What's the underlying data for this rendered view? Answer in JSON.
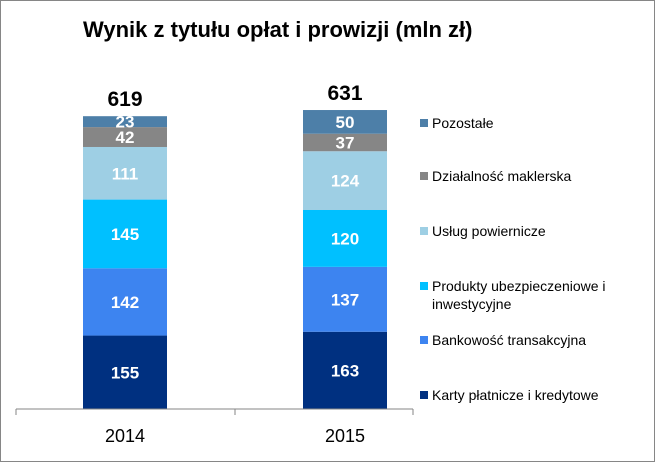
{
  "chart_data": {
    "type": "bar",
    "stacked": true,
    "title": "Wynik z tytułu opłat i prowizji (mln zł)",
    "categories": [
      "2014",
      "2015"
    ],
    "totals": [
      619,
      631
    ],
    "series": [
      {
        "name": "Karty płatnicze i kredytowe",
        "values": [
          155,
          163
        ],
        "color": "#003080"
      },
      {
        "name": "Bankowość transakcyjna",
        "values": [
          142,
          137
        ],
        "color": "#3d84f0"
      },
      {
        "name": "Produkty ubezpieczeniowe i inwestycyjne",
        "values": [
          145,
          120
        ],
        "color": "#00c0ff"
      },
      {
        "name": "Usług powiernicze",
        "values": [
          111,
          124
        ],
        "color": "#9ecfe4"
      },
      {
        "name": "Działalność maklerska",
        "values": [
          42,
          37
        ],
        "color": "#868686"
      },
      {
        "name": "Pozostałe",
        "values": [
          23,
          50
        ],
        "color": "#4d7fa8"
      }
    ],
    "legend_order": [
      5,
      4,
      3,
      2,
      1,
      0
    ],
    "legend_lines": [
      [
        "Pozostałe"
      ],
      [
        "Działalność maklerska"
      ],
      [
        "Usług powiernicze"
      ],
      [
        "Produkty ubezpieczeniowe i",
        "inwestycyjne"
      ],
      [
        "Bankowość transakcyjna"
      ],
      [
        "Karty płatnicze i kredytowe"
      ]
    ],
    "legend_position": "right",
    "grid": false,
    "ylim": [
      0,
      631
    ]
  }
}
